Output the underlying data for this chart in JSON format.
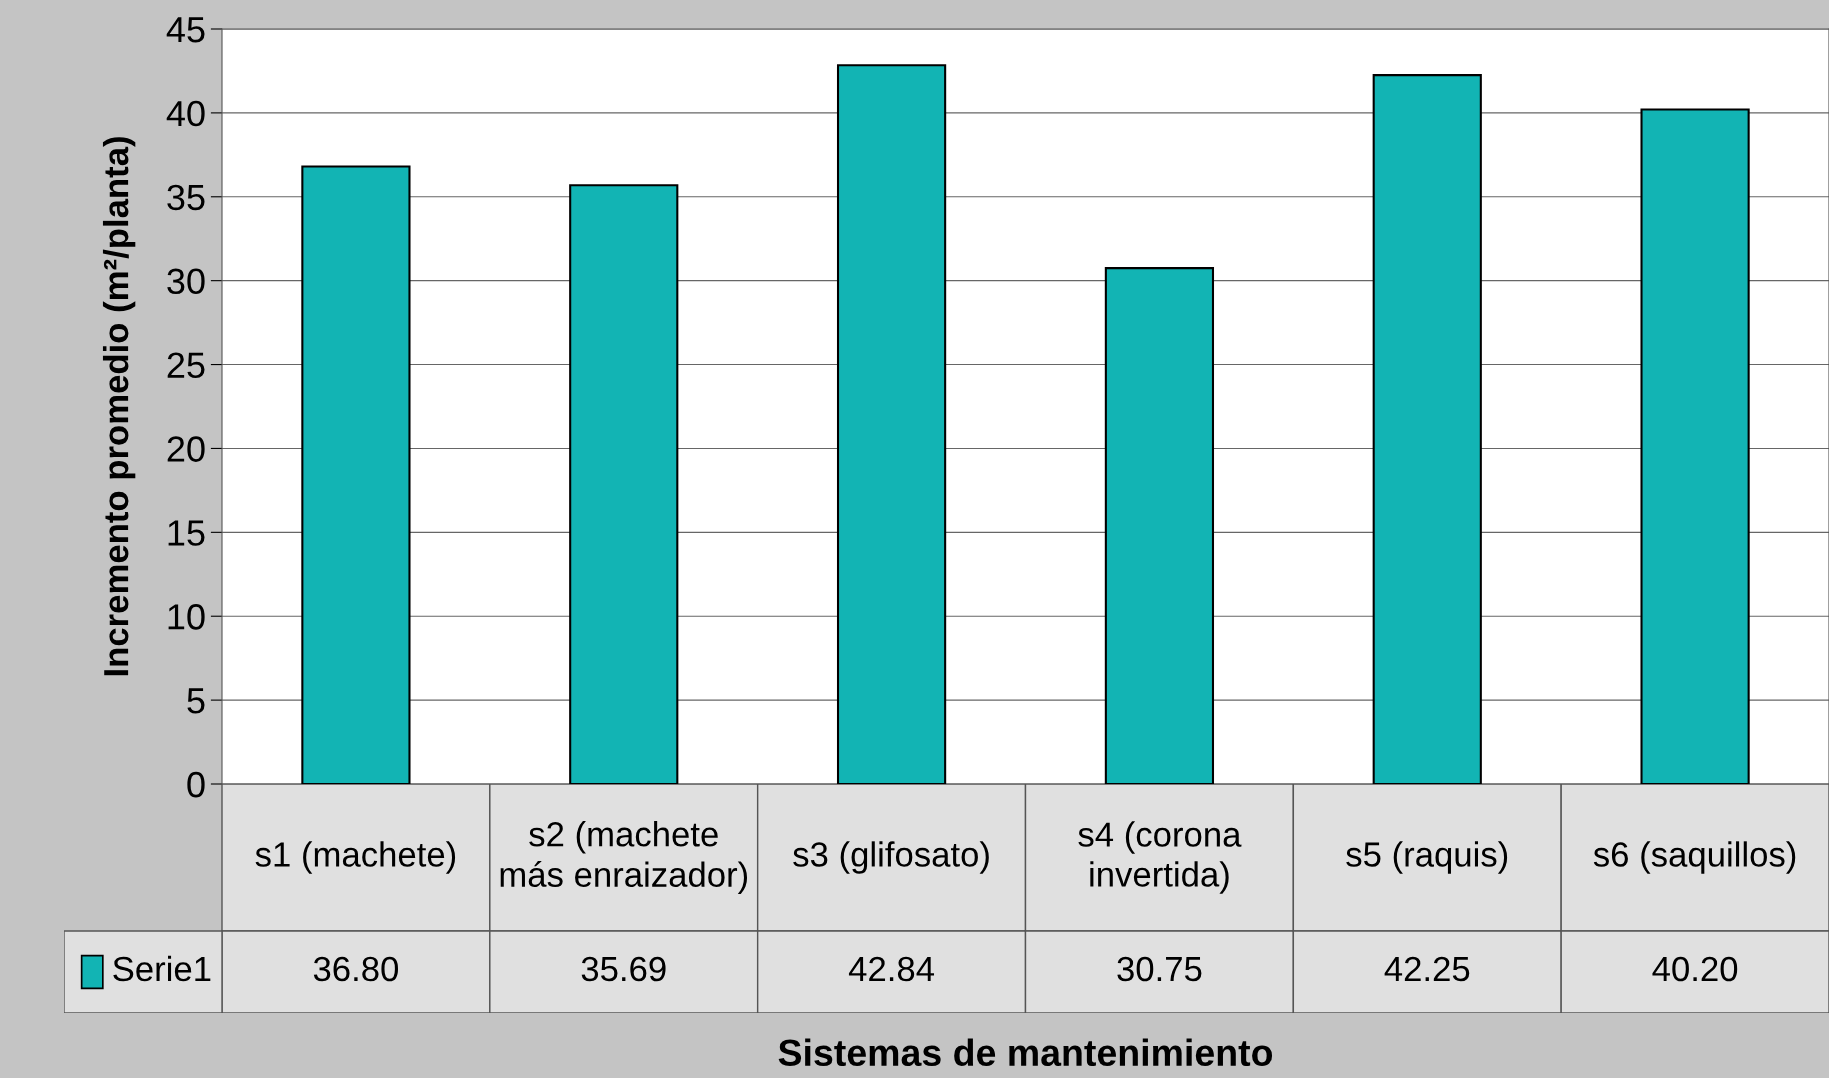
{
  "chart_data": {
    "type": "bar",
    "xlabel": "Sistemas de mantenimiento",
    "ylabel": "Incremento promedio (m²/planta)",
    "categories": [
      "s1 (machete)",
      "s2 (machete\nmás enraizador)",
      "s3 (glifosato)",
      "s4 (corona\ninvertida)",
      "s5 (raquis)",
      "s6 (saquillos)"
    ],
    "series": [
      {
        "name": "Serie1",
        "color": "#12b4b4",
        "values": [
          36.8,
          35.69,
          42.84,
          30.75,
          42.25,
          40.2
        ],
        "value_labels": [
          "36.80",
          "35.69",
          "42.84",
          "30.75",
          "42.25",
          "40.20"
        ]
      }
    ],
    "ylim": [
      0,
      45
    ],
    "yticks": [
      0,
      5,
      10,
      15,
      20,
      25,
      30,
      35,
      40,
      45
    ],
    "grid": "y",
    "legend": "bottom left"
  }
}
